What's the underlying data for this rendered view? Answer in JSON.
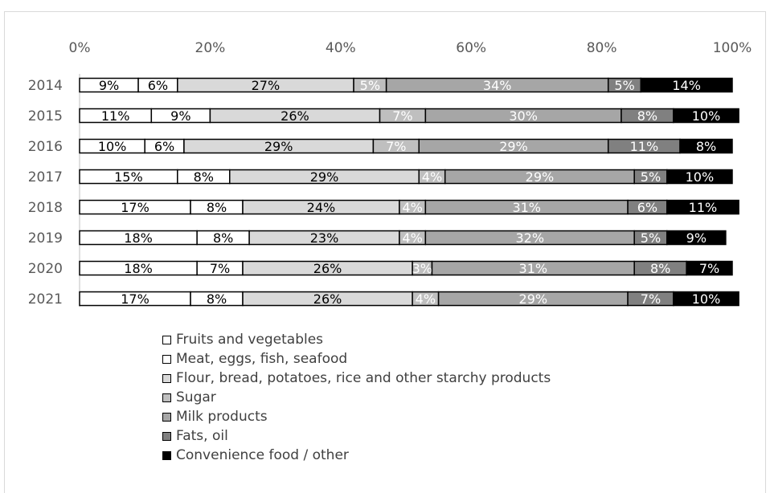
{
  "chart_data": {
    "type": "bar",
    "orientation": "horizontal",
    "stacked": true,
    "percent": true,
    "xlim": [
      0,
      100
    ],
    "x_ticks": [
      "0%",
      "20%",
      "40%",
      "60%",
      "80%",
      "100%"
    ],
    "x_tick_values": [
      0,
      20,
      40,
      60,
      80,
      100
    ],
    "categories": [
      "2014",
      "2015",
      "2016",
      "2017",
      "2018",
      "2019",
      "2020",
      "2021"
    ],
    "grid": false,
    "legend_position": "bottom",
    "series": [
      {
        "name": "Fruits and vegetables",
        "color": "#ffffff",
        "values": [
          9,
          11,
          10,
          15,
          17,
          18,
          18,
          17
        ]
      },
      {
        "name": "Meat, eggs, fish, seafood",
        "color": "#ffffff",
        "values": [
          6,
          9,
          6,
          8,
          8,
          8,
          7,
          8
        ]
      },
      {
        "name": "Flour, bread, potatoes, rice and other starchy products",
        "color": "#d9d9d9",
        "values": [
          27,
          26,
          29,
          29,
          24,
          23,
          26,
          26
        ]
      },
      {
        "name": "Sugar",
        "color": "#bfbfbf",
        "values": [
          5,
          7,
          7,
          4,
          4,
          4,
          3,
          4
        ]
      },
      {
        "name": "Milk products",
        "color": "#a6a6a6",
        "values": [
          34,
          30,
          29,
          29,
          31,
          32,
          31,
          29
        ]
      },
      {
        "name": "Fats, oil",
        "color": "#808080",
        "values": [
          5,
          8,
          11,
          5,
          6,
          5,
          8,
          7
        ]
      },
      {
        "name": "Convenience food / other",
        "color": "#000000",
        "values": [
          14,
          10,
          8,
          10,
          11,
          9,
          7,
          10
        ]
      }
    ],
    "data_labels": [
      [
        "9%",
        "6%",
        "27%",
        "5%",
        "34%",
        "5%",
        "14%"
      ],
      [
        "11%",
        "9%",
        "26%",
        "7%",
        "30%",
        "8%",
        "10%"
      ],
      [
        "10%",
        "6%",
        "29%",
        "7%",
        "29%",
        "11%",
        "8%"
      ],
      [
        "15%",
        "8%",
        "29%",
        "4%",
        "29%",
        "5%",
        "10%"
      ],
      [
        "17%",
        "8%",
        "24%",
        "4%",
        "31%",
        "6%",
        "11%"
      ],
      [
        "18%",
        "8%",
        "23%",
        "4%",
        "32%",
        "5%",
        "9%"
      ],
      [
        "18%",
        "7%",
        "26%",
        "3%",
        "31%",
        "8%",
        "7%"
      ],
      [
        "17%",
        "8%",
        "26%",
        "4%",
        "29%",
        "7%",
        "10%"
      ]
    ],
    "label_colors": [
      "#000000",
      "#000000",
      "#000000",
      "#ffffff",
      "#ffffff",
      "#ffffff",
      "#ffffff"
    ]
  }
}
